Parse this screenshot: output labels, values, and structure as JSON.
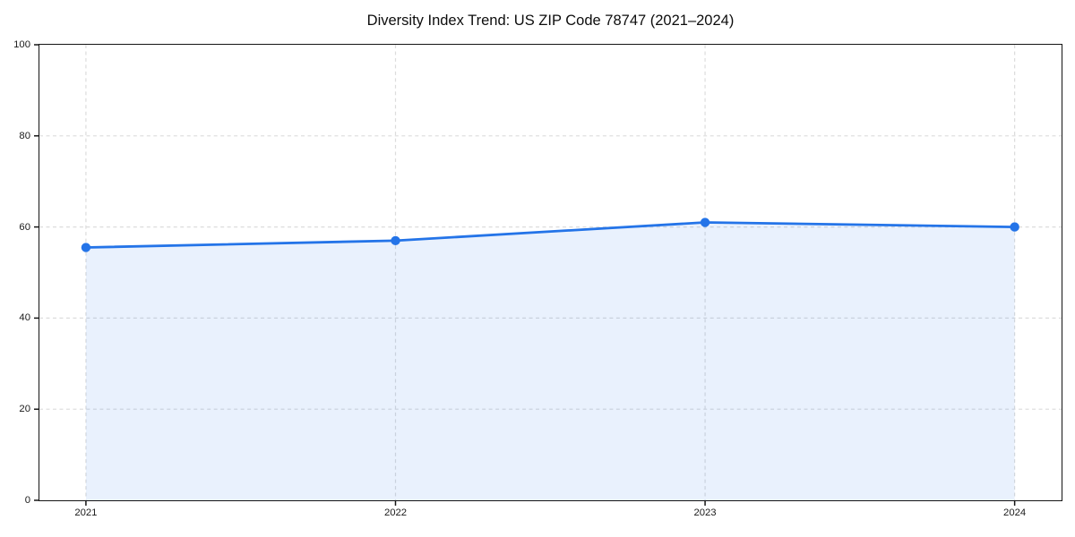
{
  "chart_data": {
    "type": "area",
    "title": "Diversity Index Trend: US ZIP Code 78747 (2021–2024)",
    "categories": [
      "2021",
      "2022",
      "2023",
      "2024"
    ],
    "values": [
      55.5,
      57,
      61,
      60
    ],
    "xlabel": "",
    "ylabel": "",
    "ylim": [
      0,
      100
    ],
    "yticks": [
      0,
      20,
      40,
      60,
      80,
      100
    ],
    "grid": "dashed horizontal and vertical gridlines at ticks",
    "legend": "none",
    "colors": {
      "line": "#2474e8",
      "marker": "#2474e8",
      "fill": "rgba(36,116,232,0.10)",
      "grid": "#dcdcdc",
      "spine": "#151515",
      "text": "#1a1a1a",
      "background": "#ffffff"
    }
  }
}
